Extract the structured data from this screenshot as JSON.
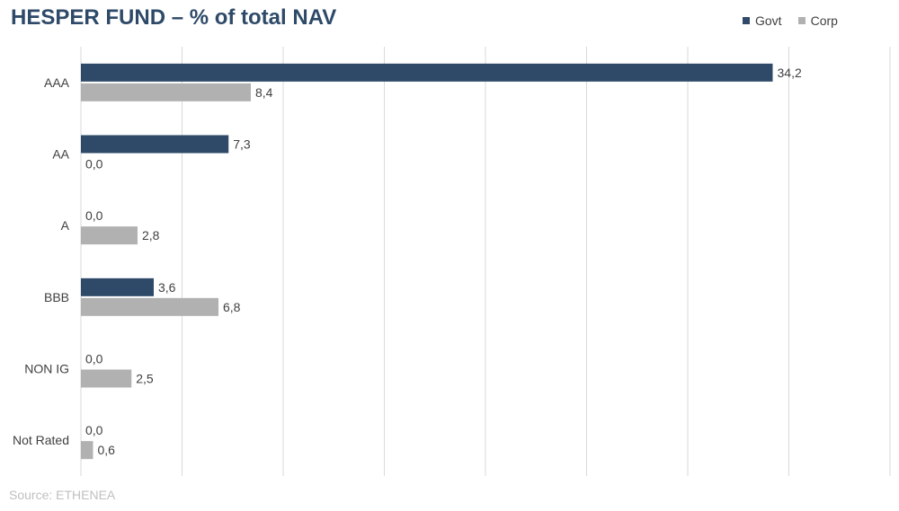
{
  "chart_data": {
    "type": "bar",
    "orientation": "horizontal",
    "title": "HESPER FUND – % of total NAV",
    "categories": [
      "AAA",
      "AA",
      "A",
      "BBB",
      "NON IG",
      "Not Rated"
    ],
    "series": [
      {
        "name": "Govt",
        "color": "#2e4a68",
        "values": [
          34.2,
          7.3,
          0.0,
          3.6,
          0.0,
          0.0
        ],
        "labels": [
          "34,2",
          "7,3",
          "0,0",
          "3,6",
          "0,0",
          "0,0"
        ]
      },
      {
        "name": "Corp",
        "color": "#b1b1b1",
        "values": [
          8.4,
          0.0,
          2.8,
          6.8,
          2.5,
          0.6
        ],
        "labels": [
          "8,4",
          "0,0",
          "2,8",
          "6,8",
          "2,5",
          "0,6"
        ]
      }
    ],
    "xlim": [
      0,
      40
    ],
    "grid": true,
    "legend_position": "top-right",
    "source": "Source: ETHENEA"
  }
}
